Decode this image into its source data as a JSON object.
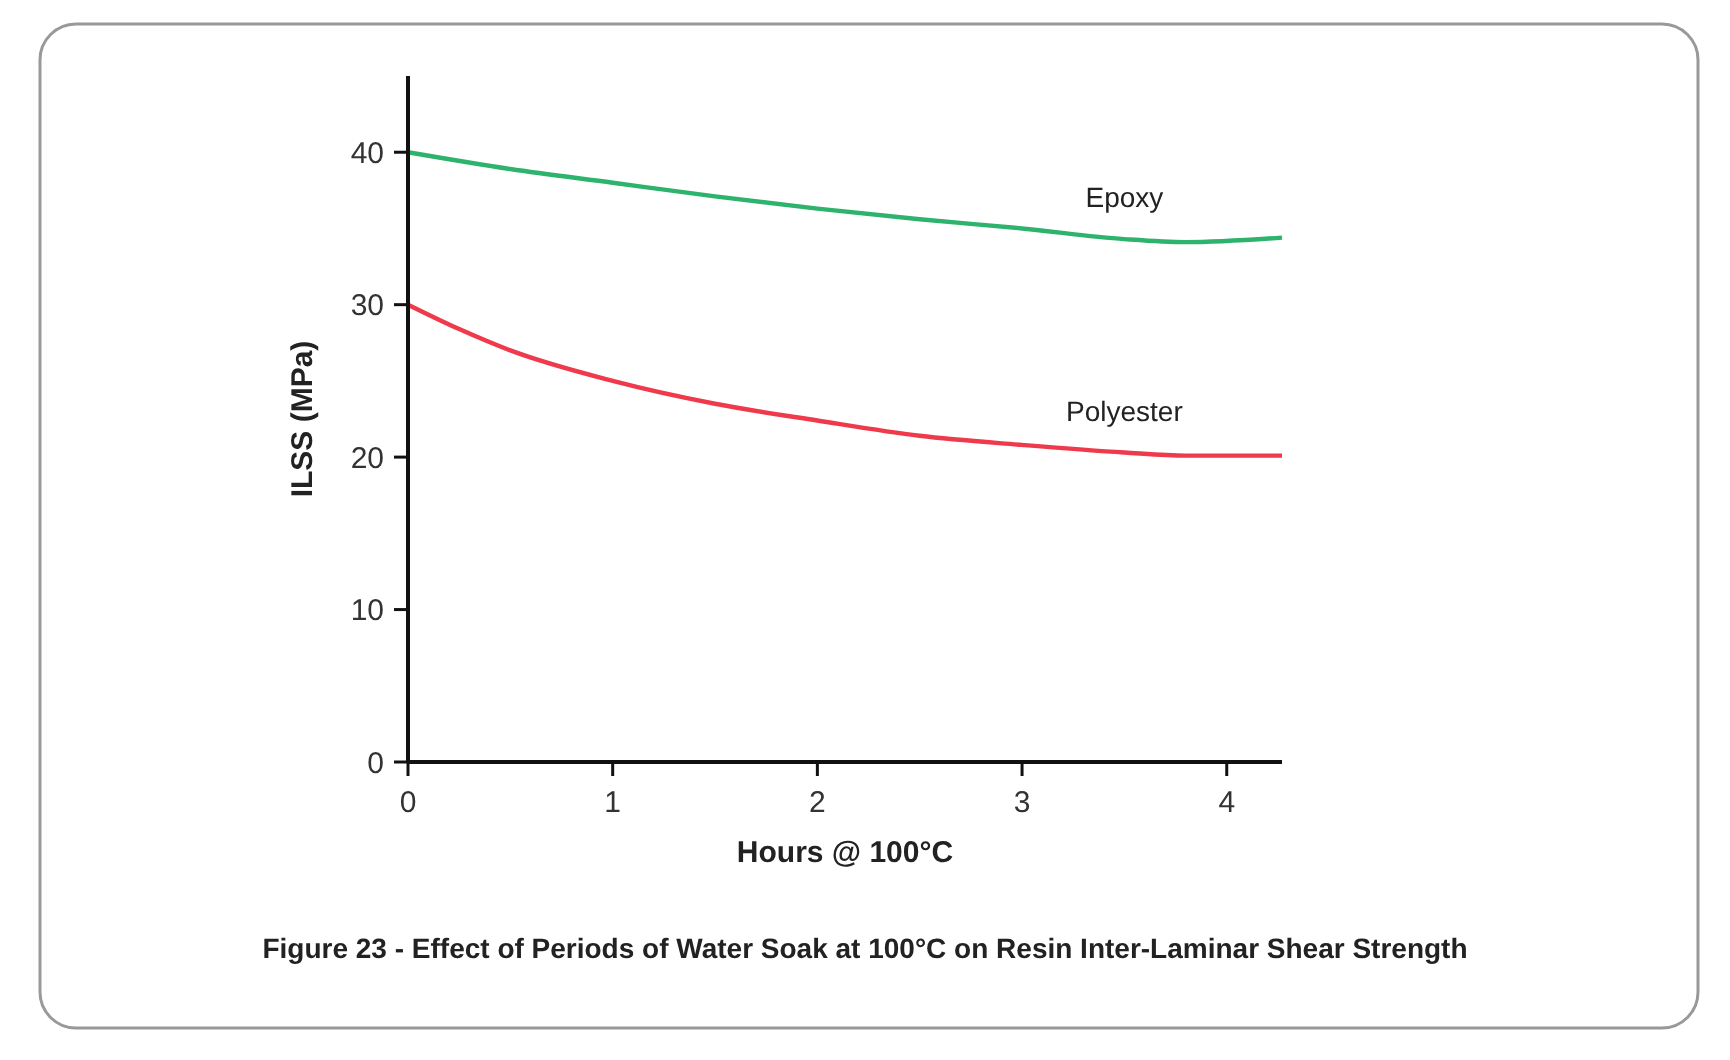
{
  "chart_data": {
    "type": "line",
    "xlabel": "Hours @ 100°C",
    "ylabel": "ILSS (MPa)",
    "xlim": [
      0,
      4.27
    ],
    "xticks": [
      0,
      1,
      2,
      3,
      4
    ],
    "ylim": [
      0,
      45
    ],
    "yticks": [
      0,
      10,
      20,
      30,
      40
    ],
    "grid": false,
    "marker": "none",
    "line_style": "solid",
    "series": [
      {
        "name": "Epoxy",
        "color": "#2db36b",
        "x": [
          0,
          0.5,
          1,
          1.5,
          2,
          2.5,
          3,
          3.5,
          3.8,
          4.27
        ],
        "values": [
          40,
          38.9,
          38,
          37.1,
          36.3,
          35.6,
          35,
          34.3,
          34.1,
          34.4
        ]
      },
      {
        "name": "Polyester",
        "color": "#ee3a4b",
        "x": [
          0,
          0.25,
          0.5,
          1,
          1.5,
          2,
          2.5,
          3,
          3.5,
          3.8,
          4.27
        ],
        "values": [
          30,
          28.4,
          27,
          25,
          23.5,
          22.4,
          21.4,
          20.8,
          20.3,
          20.1,
          20.1
        ]
      }
    ],
    "annotations": [
      "Figure 23 - Effect of Periods of Water Soak at 100°C on Resin Inter-Laminar Shear Strength"
    ]
  }
}
